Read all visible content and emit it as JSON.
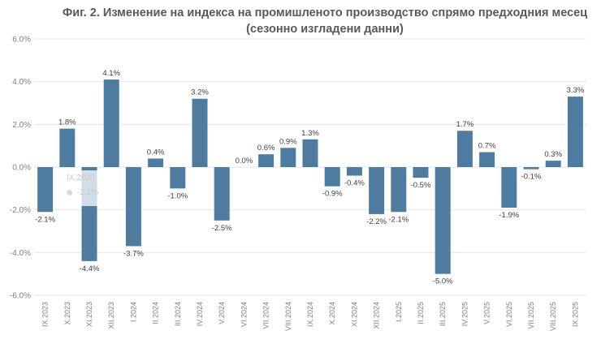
{
  "title_line1": "Фиг. 2. Изменение на индекса на промишленото производство спрямо предходния месец",
  "title_line2": "(сезонно изгладени данни)",
  "tooltip": {
    "label": "IX.2023",
    "value": "-2.1%"
  },
  "colors": {
    "bar": "#4e7ca1",
    "grid": "#e6e6e6",
    "axis": "#bfbfbf"
  },
  "chart_data": {
    "type": "bar",
    "categories": [
      "IX.2023",
      "X.2023",
      "XI.2023",
      "XII.2023",
      "I.2024",
      "II.2024",
      "III.2024",
      "IV.2024",
      "V.2024",
      "VI.2024",
      "VII.2024",
      "VIII.2024",
      "IX.2024",
      "X.2024",
      "XI.2024",
      "XII.2024",
      "I.2025",
      "II.2025",
      "III.2025",
      "IV.2025",
      "V.2025",
      "VI.2025",
      "VII.2025",
      "VIII.2025",
      "IX.2025"
    ],
    "values": [
      -2.1,
      1.8,
      -4.4,
      4.1,
      -3.7,
      0.4,
      -1.0,
      3.2,
      -2.5,
      0.0,
      0.6,
      0.9,
      1.3,
      -0.9,
      -0.4,
      -2.2,
      -2.1,
      -0.5,
      -5.0,
      1.7,
      0.7,
      -1.9,
      -0.1,
      0.3,
      3.3
    ],
    "labels": [
      "-2.1%",
      "1.8%",
      "-4.4%",
      "4.1%",
      "-3.7%",
      "0.4%",
      "-1.0%",
      "3.2%",
      "-2.5%",
      "0.0%",
      "0.6%",
      "0.9%",
      "1.3%",
      "-0.9%",
      "-0.4%",
      "-2.2%",
      "-2.1%",
      "-0.5%",
      "-5.0%",
      "1.7%",
      "0.7%",
      "-1.9%",
      "-0.1%",
      "0.3%",
      "3.3%"
    ],
    "yticks": [
      "-6.0%",
      "-4.0%",
      "-2.0%",
      "0.0%",
      "2.0%",
      "4.0%",
      "6.0%"
    ],
    "ytick_values": [
      -6,
      -4,
      -2,
      0,
      2,
      4,
      6
    ],
    "ylim": [
      -6,
      6
    ],
    "grid": true
  }
}
